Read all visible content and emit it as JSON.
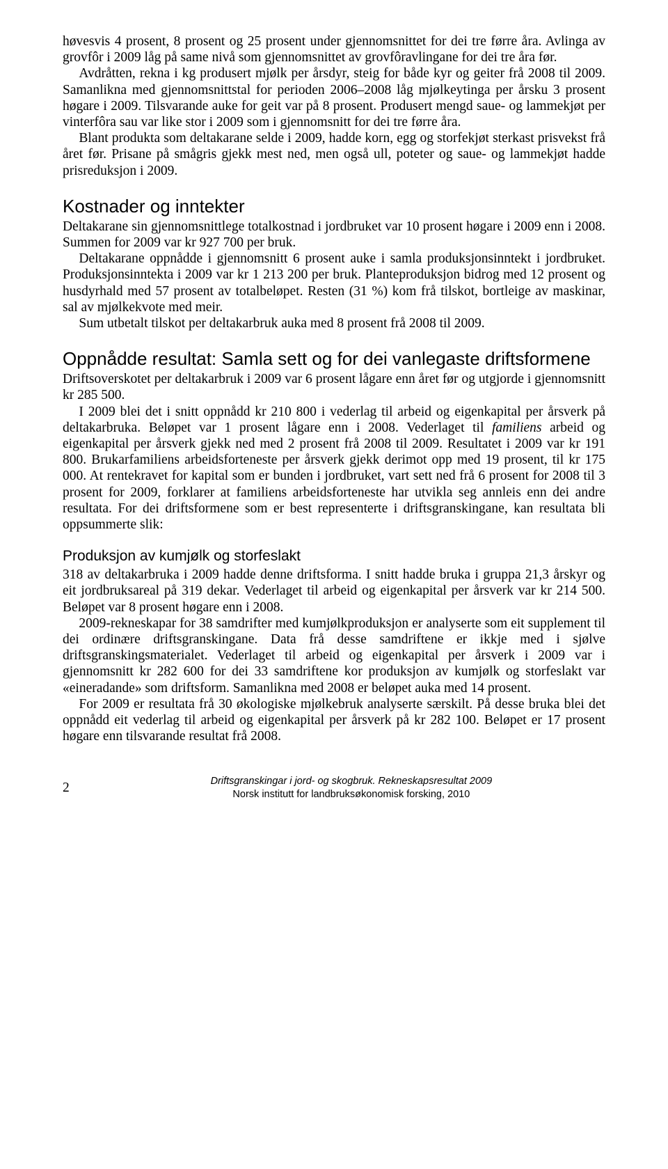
{
  "paragraphs": {
    "p1a": "høvesvis 4 prosent, 8 prosent og 25 prosent under gjennomsnittet for dei tre førre åra. Avlinga av grovfôr i 2009 låg på same nivå som gjennomsnittet av grovfôravlingane for dei tre åra før.",
    "p1b": "Avdråtten, rekna i kg produsert mjølk per årsdyr, steig for både kyr og geiter frå 2008 til 2009. Samanlikna med gjennomsnittstal for perioden 2006–2008 låg mjølke­ytinga per årsku 3 prosent høgare i 2009. Tilsvarande auke for geit var på 8 prosent. Produsert mengd saue- og lammekjøt per vinterfôra sau var like stor i 2009 som i gjennomsnitt for dei tre førre åra.",
    "p1c": "Blant produkta som deltakarane selde i 2009, hadde korn, egg og storfekjøt sterkast prisvekst frå året før. Prisane på smågris gjekk mest ned, men også ull, poteter og saue- og lammekjøt hadde prisreduksjon i 2009.",
    "h2a": "Kostnader og inntekter",
    "p2a": "Deltakarane sin gjennomsnittlege totalkostnad i jordbruket var 10 prosent høgare i 2009 enn i 2008. Summen for 2009 var  kr 927 700 per bruk.",
    "p2b": "Deltakarane oppnådde i gjennomsnitt 6 prosent auke i samla produksjonsinntekt i jordbruket. Produksjonsinntekta i 2009 var kr 1 213 200 per bruk. Planteproduksjon bidrog med 12 prosent og husdyrhald med 57 prosent av totalbeløpet. Resten (31 %) kom frå tilskot, bortleige av maskinar, sal av mjølkekvote med meir.",
    "p2c": "Sum utbetalt tilskot per deltakarbruk auka med 8 prosent frå 2008 til 2009.",
    "h2b": "Oppnådde resultat: Samla sett og for dei vanlegaste driftsformene",
    "p3a": "Driftsoverskotet per deltakarbruk i 2009 var 6 prosent lågare enn året før og utgjorde i gjennomsnitt kr 285 500.",
    "p3b_pre": "I 2009 blei det i snitt oppnådd kr 210 800 i vederlag til arbeid og eigenkapital per årsverk på deltakarbruka. Beløpet var 1 prosent lågare enn i 2008. Vederlaget til ",
    "p3b_em": "familiens",
    "p3b_post": " arbeid og eigenkapital per årsverk gjekk ned med 2 prosent frå 2008 til 2009. Resultatet i 2009 var kr 191 800. Brukarfamiliens arbeidsforteneste per års­verk gjekk derimot opp med 19 prosent, til kr 175 000. At rentekravet for kapital som er bunden i jordbruket, vart sett ned frå 6 prosent for 2008 til 3 prosent for 2009, forklarer at familiens arbeidsforteneste har utvikla seg annleis enn dei andre resultata. For dei driftsformene som er best representerte i driftsgranskingane, kan resultata bli oppsummerte slik:",
    "h3a": "Produksjon av kumjølk og storfeslakt",
    "p4a": "318 av deltakarbruka i 2009 hadde denne driftsforma. I snitt hadde bruka i gruppa 21,3 årskyr og eit jordbruksareal på 319 dekar. Vederlaget til arbeid og eigenkapital per årsverk var kr 214 500. Beløpet var 8 prosent høgare enn i 2008.",
    "p4b": "2009-rekneskapar for 38 samdrifter med kumjølkproduksjon er analyserte som eit supplement til dei ordinære driftsgranskingane. Data frå desse samdriftene er ikkje med i sjølve driftsgranskingsmaterialet. Vederlaget til arbeid og eigenkapital per årsverk i 2009 var i gjennomsnitt kr 282 600 for dei 33 samdriftene kor produksjon av kumjølk og storfeslakt var «eineradande» som driftsform. Samanlikna med 2008 er beløpet auka med 14 prosent.",
    "p4c": "For 2009 er resultata frå 30 økologiske mjølkebruk analyserte særskilt. På desse bruka blei det oppnådd eit vederlag til arbeid og eigenkapital per årsverk på kr 282 100. Beløpet er 17 prosent høgare enn tilsvarande resultat frå 2008."
  },
  "footer": {
    "page_number": "2",
    "line1": "Driftsgranskingar i jord- og skogbruk. Rekneskapsresultat 2009",
    "line2": "Norsk institutt for landbruksøkonomisk forsking, 2010"
  }
}
